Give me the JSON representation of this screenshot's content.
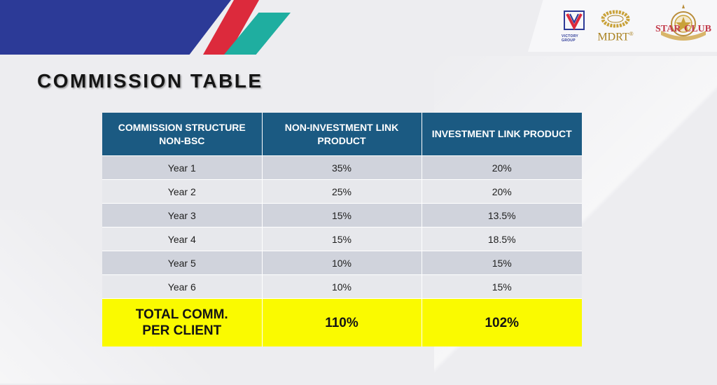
{
  "title": "COMMISSION TABLE",
  "logos": {
    "victory_text": "VICTORY GROUP",
    "mdrt": "MDRT",
    "mdrt_mark": "®",
    "star_left": "STAR",
    "star_right": "CLUB"
  },
  "table": {
    "headers": [
      "COMMISSION STRUCTURE NON-BSC",
      "NON-INVESTMENT LINK PRODUCT",
      "INVESTMENT LINK PRODUCT"
    ],
    "rows": [
      {
        "year": "Year 1",
        "non_investment": "35%",
        "investment": "20%"
      },
      {
        "year": "Year 2",
        "non_investment": "25%",
        "investment": "20%"
      },
      {
        "year": "Year 3",
        "non_investment": "15%",
        "investment": "13.5%"
      },
      {
        "year": "Year 4",
        "non_investment": "15%",
        "investment": "18.5%"
      },
      {
        "year": "Year 5",
        "non_investment": "10%",
        "investment": "15%"
      },
      {
        "year": "Year 6",
        "non_investment": "10%",
        "investment": "15%"
      }
    ],
    "total": {
      "label": "TOTAL COMM. PER CLIENT",
      "non_investment": "110%",
      "investment": "102%"
    }
  },
  "colors": {
    "header_bg": "#1b5a82",
    "row_odd": "#d0d3dc",
    "row_even": "#e7e8ec",
    "total_bg": "#fafa00",
    "stripe_blue": "#2c3a97",
    "stripe_red": "#dc2a3c",
    "stripe_teal": "#1faea0"
  }
}
